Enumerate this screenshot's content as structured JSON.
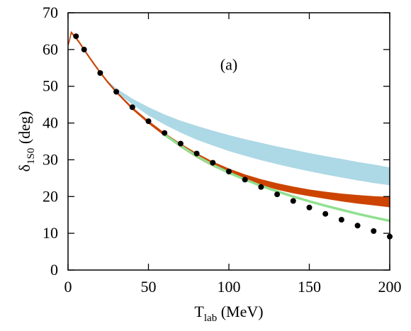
{
  "chart_data": {
    "type": "line",
    "title": "",
    "xlabel": {
      "main": "T",
      "sub": "lab",
      "unit": " (MeV)"
    },
    "ylabel": {
      "main": "δ",
      "sub": "1S0",
      "unit": " (deg)"
    },
    "annotation": "(a)",
    "xlim": [
      0,
      200
    ],
    "ylim": [
      0,
      70
    ],
    "xticks": [
      0,
      50,
      100,
      150,
      200
    ],
    "yticks": [
      0,
      10,
      20,
      30,
      40,
      50,
      60,
      70
    ],
    "grid": false,
    "legend": "none",
    "bands": [
      {
        "color": "#add8e6",
        "x": [
          1,
          2,
          4,
          7,
          10,
          15,
          20,
          25,
          30,
          40,
          50,
          60,
          70,
          80,
          90,
          100,
          110,
          120,
          130,
          140,
          150,
          160,
          170,
          180,
          190,
          200
        ],
        "lower": [
          62.5,
          64.5,
          63.5,
          61.8,
          59.8,
          56.6,
          53.6,
          51.0,
          48.6,
          45.2,
          42.2,
          39.7,
          37.5,
          35.6,
          34.0,
          32.5,
          31.2,
          30.0,
          28.9,
          27.9,
          27.0,
          26.1,
          25.3,
          24.5,
          23.8,
          23.2
        ],
        "upper": [
          62.5,
          64.5,
          63.5,
          61.8,
          59.8,
          56.6,
          53.6,
          51.2,
          49.3,
          46.5,
          44.2,
          42.2,
          40.5,
          39.1,
          37.8,
          36.6,
          35.5,
          34.5,
          33.5,
          32.6,
          31.7,
          30.9,
          30.1,
          29.3,
          28.6,
          27.8
        ]
      },
      {
        "color": "#cc4400",
        "x": [
          0,
          1,
          2,
          4,
          7,
          10,
          15,
          20,
          25,
          30,
          40,
          50,
          60,
          70,
          80,
          90,
          100,
          110,
          120,
          130,
          140,
          150,
          160,
          170,
          180,
          190,
          200
        ],
        "lower": [
          61.0,
          62.5,
          64.5,
          63.5,
          61.8,
          59.8,
          56.6,
          53.6,
          50.8,
          48.3,
          43.8,
          40.0,
          36.6,
          33.5,
          30.7,
          28.3,
          26.3,
          24.6,
          23.2,
          22.0,
          21.0,
          20.2,
          19.5,
          18.8,
          18.2,
          17.7,
          17.2
        ],
        "upper": [
          61.0,
          62.8,
          64.8,
          63.8,
          62.1,
          60.1,
          56.9,
          53.9,
          51.1,
          48.6,
          44.2,
          40.5,
          37.2,
          34.3,
          31.7,
          29.4,
          27.5,
          25.9,
          24.6,
          23.5,
          22.6,
          21.8,
          21.2,
          20.7,
          20.3,
          20.0,
          19.8
        ]
      }
    ],
    "series": [
      {
        "type": "line",
        "color": "#90e090",
        "x": [
          60,
          70,
          80,
          90,
          100,
          110,
          120,
          130,
          140,
          150,
          160,
          170,
          180,
          190,
          200
        ],
        "y": [
          36.8,
          33.8,
          31.0,
          28.6,
          26.5,
          24.6,
          22.9,
          21.4,
          20.0,
          18.7,
          17.5,
          16.4,
          15.3,
          14.3,
          13.4
        ]
      },
      {
        "type": "scatter",
        "color": "#000000",
        "x": [
          5,
          10,
          20,
          30,
          40,
          50,
          60,
          70,
          80,
          90,
          100,
          110,
          120,
          130,
          140,
          150,
          160,
          170,
          180,
          190,
          200
        ],
        "y": [
          63.6,
          60.0,
          53.6,
          48.5,
          44.3,
          40.5,
          37.3,
          34.4,
          31.7,
          29.2,
          26.8,
          24.6,
          22.6,
          20.6,
          18.8,
          17.0,
          15.3,
          13.7,
          12.1,
          10.6,
          9.1
        ]
      }
    ]
  }
}
